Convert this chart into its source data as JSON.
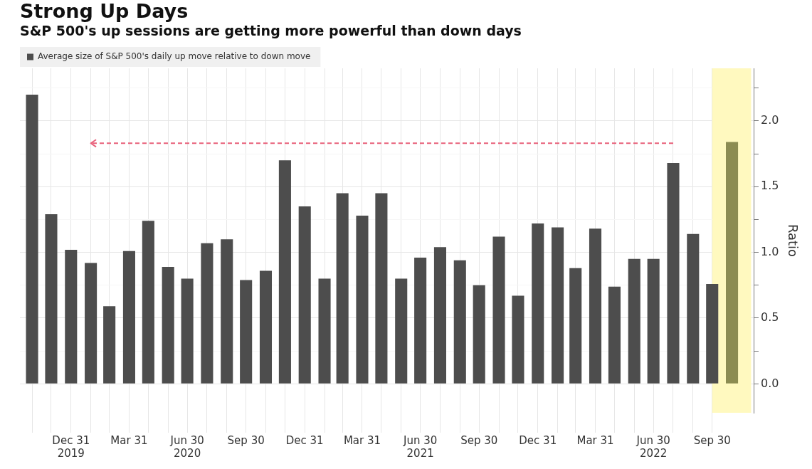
{
  "chart_data": {
    "type": "bar",
    "title": "Strong Up Days",
    "subtitle": "S&P 500's up sessions are getting more powerful than down days",
    "ylabel": "Ratio",
    "series": [
      {
        "name": "Average size of S&P 500's daily up move relative to down move",
        "color": "#4d4d4d",
        "colors": [
          "#4d4d4d",
          "#4d4d4d",
          "#4d4d4d",
          "#4d4d4d",
          "#4d4d4d",
          "#4d4d4d",
          "#4d4d4d",
          "#4d4d4d",
          "#4d4d4d",
          "#4d4d4d",
          "#4d4d4d",
          "#4d4d4d",
          "#4d4d4d",
          "#4d4d4d",
          "#4d4d4d",
          "#4d4d4d",
          "#4d4d4d",
          "#4d4d4d",
          "#4d4d4d",
          "#4d4d4d",
          "#4d4d4d",
          "#4d4d4d",
          "#4d4d4d",
          "#4d4d4d",
          "#4d4d4d",
          "#4d4d4d",
          "#4d4d4d",
          "#4d4d4d",
          "#4d4d4d",
          "#4d4d4d",
          "#4d4d4d",
          "#4d4d4d",
          "#4d4d4d",
          "#4d4d4d",
          "#4d4d4d",
          "#4d4d4d",
          "#8c8c52"
        ],
        "x": [
          "2019-10-31",
          "2019-11-30",
          "2019-12-31",
          "2020-01-31",
          "2020-02-29",
          "2020-03-31",
          "2020-04-30",
          "2020-05-31",
          "2020-06-30",
          "2020-07-31",
          "2020-08-31",
          "2020-09-30",
          "2020-10-31",
          "2020-11-30",
          "2020-12-31",
          "2021-01-31",
          "2021-02-28",
          "2021-03-31",
          "2021-04-30",
          "2021-05-31",
          "2021-06-30",
          "2021-07-31",
          "2021-08-31",
          "2021-09-30",
          "2021-10-31",
          "2021-11-30",
          "2021-12-31",
          "2022-01-31",
          "2022-02-28",
          "2022-03-31",
          "2022-04-30",
          "2022-05-31",
          "2022-06-30",
          "2022-07-31",
          "2022-08-31",
          "2022-09-30",
          "2022-10-31"
        ],
        "values": [
          2.2,
          1.29,
          1.02,
          0.92,
          0.59,
          1.01,
          1.24,
          0.89,
          0.8,
          1.07,
          1.1,
          0.79,
          0.86,
          1.7,
          1.35,
          0.8,
          1.45,
          1.28,
          1.45,
          0.8,
          0.96,
          1.04,
          0.94,
          0.75,
          1.12,
          0.67,
          1.22,
          1.19,
          0.88,
          1.18,
          0.74,
          0.95,
          0.95,
          1.68,
          1.14,
          0.76,
          1.84
        ]
      },
      {
        "type": "line",
        "color": "#e8607a",
        "line_style": "dashed",
        "x": [
          "2022-07-31",
          "2020-01-31"
        ],
        "values": [
          1.83,
          1.83
        ]
      }
    ],
    "bands": [
      {
        "axis": "x",
        "from": "2022-09-30",
        "to": "2022-11-30",
        "color": "#fff9bf"
      }
    ],
    "xlim": [
      "2019-10-12",
      "2022-12-05"
    ],
    "xticks": [
      {
        "value": "2019-10-31",
        "label": null
      },
      {
        "value": "2019-11-30",
        "label": null
      },
      {
        "value": "2019-12-31",
        "label": "Dec 31\n2019"
      },
      {
        "value": "2020-01-31",
        "label": null
      },
      {
        "value": "2020-02-29",
        "label": null
      },
      {
        "value": "2020-03-31",
        "label": "Mar 31"
      },
      {
        "value": "2020-04-30",
        "label": null
      },
      {
        "value": "2020-05-31",
        "label": null
      },
      {
        "value": "2020-06-30",
        "label": "Jun 30\n2020"
      },
      {
        "value": "2020-07-31",
        "label": null
      },
      {
        "value": "2020-08-31",
        "label": null
      },
      {
        "value": "2020-09-30",
        "label": "Sep 30"
      },
      {
        "value": "2020-10-31",
        "label": null
      },
      {
        "value": "2020-11-30",
        "label": null
      },
      {
        "value": "2020-12-31",
        "label": "Dec 31"
      },
      {
        "value": "2021-01-31",
        "label": null
      },
      {
        "value": "2021-02-28",
        "label": null
      },
      {
        "value": "2021-03-31",
        "label": "Mar 31"
      },
      {
        "value": "2021-04-30",
        "label": null
      },
      {
        "value": "2021-05-31",
        "label": null
      },
      {
        "value": "2021-06-30",
        "label": "Jun 30\n2021"
      },
      {
        "value": "2021-07-31",
        "label": null
      },
      {
        "value": "2021-08-31",
        "label": null
      },
      {
        "value": "2021-09-30",
        "label": "Sep 30"
      },
      {
        "value": "2021-10-31",
        "label": null
      },
      {
        "value": "2021-11-30",
        "label": null
      },
      {
        "value": "2021-12-31",
        "label": "Dec 31"
      },
      {
        "value": "2022-01-31",
        "label": null
      },
      {
        "value": "2022-02-28",
        "label": null
      },
      {
        "value": "2022-03-31",
        "label": "Mar 31"
      },
      {
        "value": "2022-04-30",
        "label": null
      },
      {
        "value": "2022-05-31",
        "label": null
      },
      {
        "value": "2022-06-30",
        "label": "Jun 30\n2022"
      },
      {
        "value": "2022-07-31",
        "label": null
      },
      {
        "value": "2022-08-31",
        "label": null
      },
      {
        "value": "2022-09-30",
        "label": "Sep 30"
      }
    ],
    "ylim": [
      -0.22,
      2.4
    ],
    "yticks": [
      {
        "value": 0,
        "label": "0.0"
      },
      {
        "value": 0.25,
        "label": null
      },
      0.5,
      {
        "value": 0.75,
        "label": null
      },
      {
        "value": 1,
        "label": "1.0"
      },
      {
        "value": 1.25,
        "label": null
      },
      1.5,
      {
        "value": 1.75,
        "label": null
      },
      {
        "value": 2,
        "label": "2.0"
      },
      {
        "value": 2.25,
        "label": null
      }
    ],
    "grid": true,
    "legend": "top left"
  }
}
